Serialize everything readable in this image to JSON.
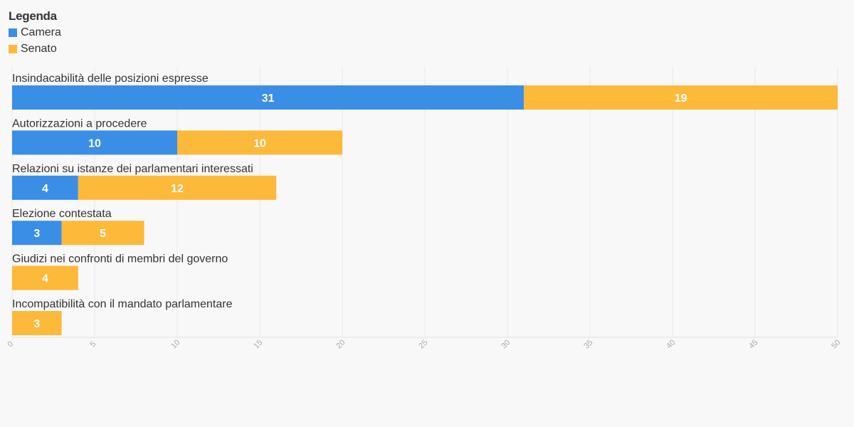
{
  "legend": {
    "title": "Legenda",
    "items": [
      {
        "label": "Camera",
        "color": "#3a8ee6"
      },
      {
        "label": "Senato",
        "color": "#fdb93a"
      }
    ]
  },
  "chart_data": {
    "type": "bar",
    "orientation": "horizontal",
    "stacked": true,
    "categories": [
      "Insindacabilità delle posizioni espresse",
      "Autorizzazioni a procedere",
      "Relazioni su istanze dei parlamentari interessati",
      "Elezione contestata",
      "Giudizi nei confronti di membri del governo",
      "Incompatibilità con il mandato parlamentare"
    ],
    "series": [
      {
        "name": "Camera",
        "color": "#3a8ee6",
        "values": [
          31,
          10,
          4,
          3,
          0,
          0
        ]
      },
      {
        "name": "Senato",
        "color": "#fdb93a",
        "values": [
          19,
          10,
          12,
          5,
          4,
          3
        ]
      }
    ],
    "xlim": [
      0,
      50
    ],
    "xticks": [
      0,
      5,
      10,
      15,
      20,
      25,
      30,
      35,
      40,
      45,
      50
    ],
    "grid": true,
    "legend_position": "top-left"
  }
}
